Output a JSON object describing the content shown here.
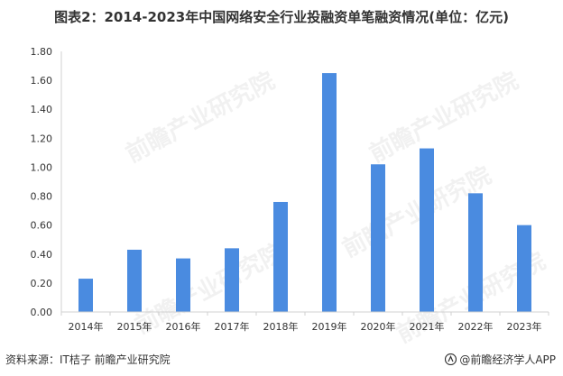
{
  "title": "图表2：2014-2023年中国网络安全行业投融资单笔融资情况(单位：亿元)",
  "source": "资料来源：IT桔子 前瞻产业研究院",
  "brand": "@前瞻经济学人APP",
  "watermark": "前瞻产业研究院",
  "colors": {
    "bar": "#4a8be0",
    "axis": "#d0d0d0",
    "text": "#333333"
  },
  "chart_data": {
    "type": "bar",
    "categories": [
      "2014年",
      "2015年",
      "2016年",
      "2017年",
      "2018年",
      "2019年",
      "2020年",
      "2021年",
      "2022年",
      "2023年"
    ],
    "values": [
      0.23,
      0.43,
      0.37,
      0.44,
      0.76,
      1.65,
      1.02,
      1.13,
      0.82,
      0.6
    ],
    "yticks": [
      "0.00",
      "0.20",
      "0.40",
      "0.60",
      "0.80",
      "1.00",
      "1.20",
      "1.40",
      "1.60",
      "1.80"
    ],
    "ylim": [
      0,
      1.8
    ],
    "grid": false,
    "legend": "none"
  }
}
